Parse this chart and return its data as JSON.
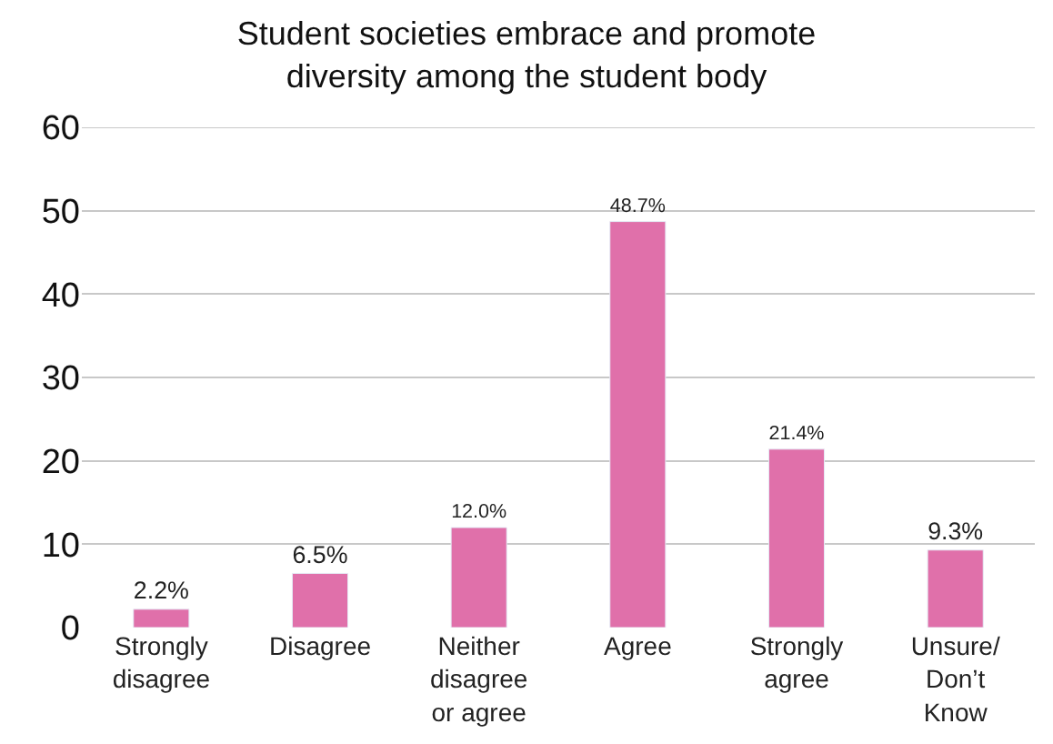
{
  "chart_data": {
    "type": "bar",
    "title": "Student societies embrace and promote\ndiversity among the student body",
    "categories": [
      "Strongly\ndisagree",
      "Disagree",
      "Neither\ndisagree\nor agree",
      "Agree",
      "Strongly\nagree",
      "Unsure/\nDon’t\nKnow"
    ],
    "values": [
      2.2,
      6.5,
      12.0,
      48.7,
      21.4,
      9.3
    ],
    "value_labels": [
      "2.2%",
      "6.5%",
      "12.0%",
      "48.7%",
      "21.4%",
      "9.3%"
    ],
    "color": "#e070aa",
    "ylim": [
      0,
      60
    ],
    "yticks": [
      0,
      10,
      20,
      30,
      40,
      50,
      60
    ],
    "grid": "y",
    "legend": false
  }
}
